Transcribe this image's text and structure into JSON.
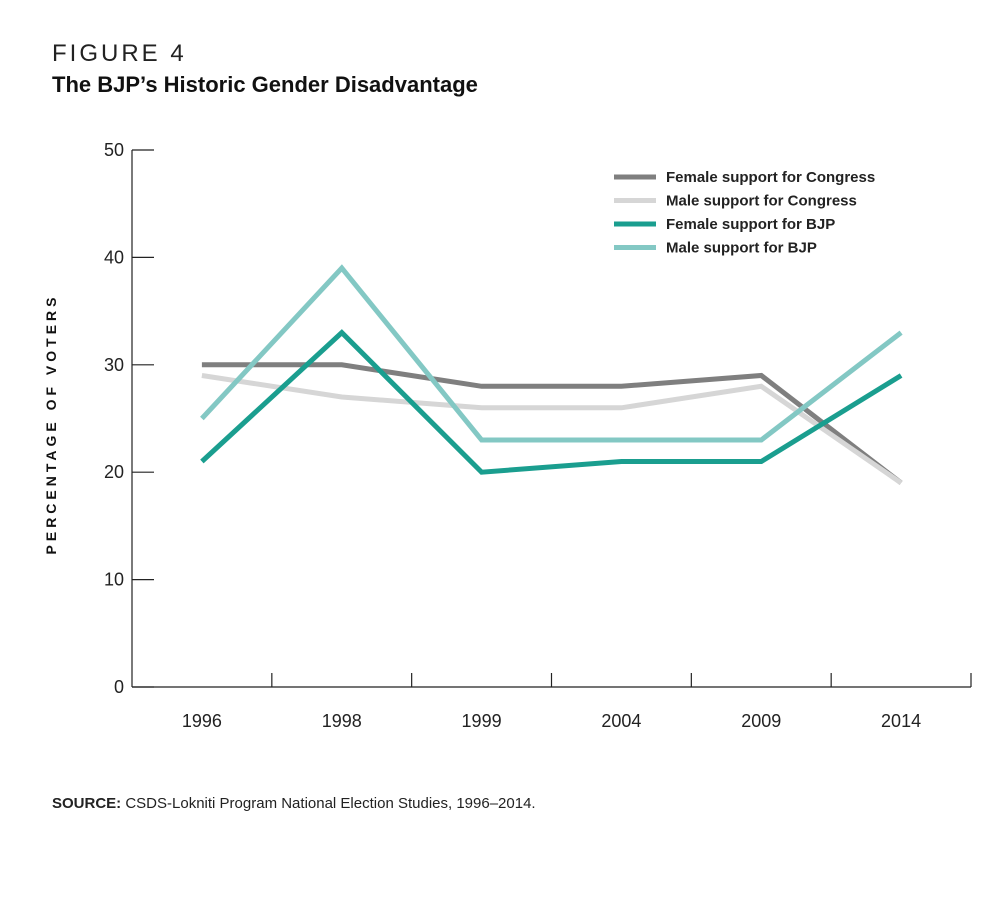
{
  "figure": {
    "label": "FIGURE 4",
    "title": "The BJP’s Historic Gender Disadvantage"
  },
  "source": {
    "prefix": "SOURCE:",
    "text": "CSDS-Lokniti Program National Election Studies, 1996–2014."
  },
  "chart_data": {
    "type": "line",
    "title": "The BJP’s Historic Gender Disadvantage",
    "xlabel": "",
    "ylabel": "PERCENTAGE OF VOTERS",
    "categories": [
      "1996",
      "1998",
      "1999",
      "2004",
      "2009",
      "2014"
    ],
    "ylim": [
      0,
      50
    ],
    "yticks": [
      0,
      10,
      20,
      30,
      40,
      50
    ],
    "grid": false,
    "legend_position": "top-right",
    "series": [
      {
        "name": "Female support for Congress",
        "color": "#7f7f7f",
        "values": [
          30,
          30,
          28,
          28,
          29,
          19
        ]
      },
      {
        "name": "Male support for Congress",
        "color": "#d6d6d6",
        "values": [
          29,
          27,
          26,
          26,
          28,
          19
        ]
      },
      {
        "name": "Female support for BJP",
        "color": "#1a9e8f",
        "values": [
          21,
          33,
          20,
          21,
          21,
          29
        ]
      },
      {
        "name": "Male support for BJP",
        "color": "#83c8c4",
        "values": [
          25,
          39,
          23,
          23,
          23,
          33
        ]
      }
    ]
  }
}
